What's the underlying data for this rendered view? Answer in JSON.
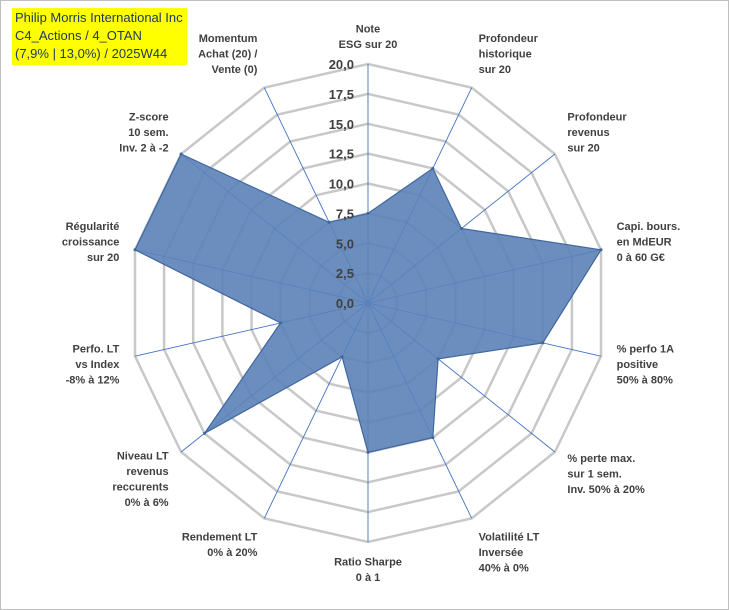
{
  "title_box": {
    "line1": "Philip Morris International Inc",
    "line2": "C4_Actions / 4_OTAN",
    "line3": "(7,9% | 13,0%) / 2025W44",
    "background": "#ffff00",
    "text_color": "#1f3864"
  },
  "chart_data": {
    "type": "radar",
    "rmin": 0,
    "rmax": 20,
    "tick_step": 2.5,
    "tick_labels": [
      "0,0",
      "2,5",
      "5,0",
      "7,5",
      "10,0",
      "12,5",
      "15,0",
      "17,5",
      "20,0"
    ],
    "grid": true,
    "fill_color": "#5b82b8",
    "stroke_color": "#3f679e",
    "axes": [
      {
        "lines": [
          "Note",
          "ESG sur 20"
        ],
        "value": 7.5
      },
      {
        "lines": [
          "Profondeur",
          "historique",
          "sur 20"
        ],
        "value": 12.5
      },
      {
        "lines": [
          "Profondeur",
          "revenus",
          "sur 20"
        ],
        "value": 10.0
      },
      {
        "lines": [
          "Capi. bours.",
          "en MdEUR",
          "0 à 60 G€"
        ],
        "value": 20.0
      },
      {
        "lines": [
          "% perfo 1A",
          "positive",
          "50% à 80%"
        ],
        "value": 15.0
      },
      {
        "lines": [
          "% perte max.",
          "sur 1 sem.",
          "Inv. 50% à 20%"
        ],
        "value": 7.5
      },
      {
        "lines": [
          "Volatilité LT",
          "Inversée",
          "40% à 0%"
        ],
        "value": 12.5
      },
      {
        "lines": [
          "Ratio Sharpe",
          "0 à 1"
        ],
        "value": 12.5
      },
      {
        "lines": [
          "Rendement LT",
          "0% à 20%"
        ],
        "value": 5.0
      },
      {
        "lines": [
          "Niveau LT",
          "revenus",
          "reccurents",
          "0% à 6%"
        ],
        "value": 17.5
      },
      {
        "lines": [
          "Perfo. LT",
          "vs Index",
          "-8% à 12%"
        ],
        "value": 7.5
      },
      {
        "lines": [
          "Régularité",
          "croissance",
          "sur 20"
        ],
        "value": 20.0
      },
      {
        "lines": [
          "Z-score",
          "10 sem.",
          "Inv. 2 à -2"
        ],
        "value": 20.0
      },
      {
        "lines": [
          "Momentum",
          "Achat (20) /",
          "Vente (0)"
        ],
        "value": 7.5
      }
    ]
  }
}
